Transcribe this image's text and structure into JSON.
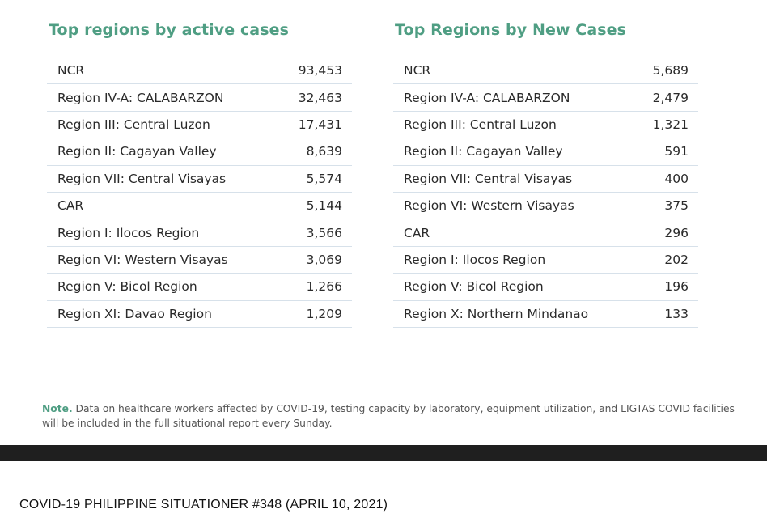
{
  "active_cases": {
    "title": "Top regions by active cases",
    "rows": [
      {
        "region": "NCR",
        "value": "93,453"
      },
      {
        "region": "Region IV-A: CALABARZON",
        "value": "32,463"
      },
      {
        "region": "Region III: Central Luzon",
        "value": "17,431"
      },
      {
        "region": "Region II: Cagayan Valley",
        "value": "8,639"
      },
      {
        "region": "Region VII: Central Visayas",
        "value": "5,574"
      },
      {
        "region": "CAR",
        "value": "5,144"
      },
      {
        "region": "Region I: Ilocos Region",
        "value": "3,566"
      },
      {
        "region": "Region VI: Western Visayas",
        "value": "3,069"
      },
      {
        "region": "Region V: Bicol Region",
        "value": "1,266"
      },
      {
        "region": "Region XI: Davao Region",
        "value": "1,209"
      }
    ]
  },
  "new_cases": {
    "title": "Top Regions by New Cases",
    "rows": [
      {
        "region": "NCR",
        "value": "5,689"
      },
      {
        "region": "Region IV-A: CALABARZON",
        "value": "2,479"
      },
      {
        "region": "Region III: Central Luzon",
        "value": "1,321"
      },
      {
        "region": "Region II: Cagayan Valley",
        "value": "591"
      },
      {
        "region": "Region VII: Central Visayas",
        "value": "400"
      },
      {
        "region": "Region VI: Western Visayas",
        "value": "375"
      },
      {
        "region": "CAR",
        "value": "296"
      },
      {
        "region": "Region I: Ilocos Region",
        "value": "202"
      },
      {
        "region": "Region V: Bicol Region",
        "value": "196"
      },
      {
        "region": "Region X: Northern Mindanao",
        "value": "133"
      }
    ]
  },
  "note": {
    "label": "Note.",
    "text": " Data on healthcare workers affected by COVID-19,  testing capacity by laboratory, equipment utilization, and LIGTAS COVID facilities will be included in the full situational report every Sunday."
  },
  "footer": {
    "title": "COVID-19 PHILIPPINE SITUATIONER #348 (APRIL 10, 2021)"
  },
  "colors": {
    "accent": "#4f9e83",
    "divider": "#d7e1ea",
    "band": "#1f1f1f"
  }
}
